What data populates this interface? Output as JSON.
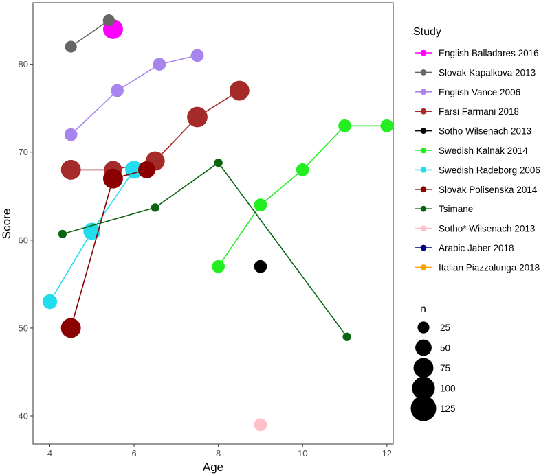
{
  "chart_data": {
    "type": "scatter",
    "title": "",
    "xlabel": "Age",
    "ylabel": "Score",
    "xlim": [
      3.6,
      12.15
    ],
    "ylim": [
      36.8,
      87.0
    ],
    "xticks": [
      4,
      6,
      8,
      10,
      12
    ],
    "yticks": [
      40,
      50,
      60,
      70,
      80
    ],
    "grid": false,
    "legend_position": "right",
    "color_legend_title": "Study",
    "size_legend_title": "n",
    "size_legend": [
      25,
      50,
      75,
      100,
      125
    ],
    "series": [
      {
        "name": "English Balladares 2016",
        "color": "#ff00ff",
        "points": [
          {
            "x": 5.5,
            "y": 84,
            "n": 75
          }
        ]
      },
      {
        "name": "Slovak  Kapalkova 2013",
        "color": "#666666",
        "points": [
          {
            "x": 4.5,
            "y": 82,
            "n": 25
          },
          {
            "x": 5.4,
            "y": 85,
            "n": 25
          }
        ]
      },
      {
        "name": "English Vance 2006",
        "color": "#a884ee",
        "points": [
          {
            "x": 4.5,
            "y": 72,
            "n": 30
          },
          {
            "x": 5.6,
            "y": 77,
            "n": 30
          },
          {
            "x": 6.6,
            "y": 80,
            "n": 30
          },
          {
            "x": 7.5,
            "y": 81,
            "n": 30
          }
        ]
      },
      {
        "name": "Farsi Farmani 2018",
        "color": "#a52a2a",
        "points": [
          {
            "x": 4.5,
            "y": 68,
            "n": 75
          },
          {
            "x": 5.5,
            "y": 68,
            "n": 60
          },
          {
            "x": 6.5,
            "y": 69,
            "n": 70
          },
          {
            "x": 7.5,
            "y": 74,
            "n": 80
          },
          {
            "x": 8.5,
            "y": 77,
            "n": 75
          }
        ]
      },
      {
        "name": "Sotho Wilsenach 2013",
        "color": "#000000",
        "points": [
          {
            "x": 9,
            "y": 57,
            "n": 30
          }
        ]
      },
      {
        "name": "Swedish Kalnak 2014",
        "color": "#22ee22",
        "points": [
          {
            "x": 8,
            "y": 57,
            "n": 30
          },
          {
            "x": 9,
            "y": 64,
            "n": 30
          },
          {
            "x": 10,
            "y": 68,
            "n": 30
          },
          {
            "x": 11,
            "y": 73,
            "n": 30
          },
          {
            "x": 12,
            "y": 73,
            "n": 30
          }
        ]
      },
      {
        "name": "Swedish Radeborg 2006",
        "color": "#22ddee",
        "points": [
          {
            "x": 4,
            "y": 53,
            "n": 40
          },
          {
            "x": 5,
            "y": 61,
            "n": 55
          },
          {
            "x": 6,
            "y": 68,
            "n": 60
          }
        ]
      },
      {
        "name": "Slovak  Polisenska 2014",
        "color": "#8b0000",
        "points": [
          {
            "x": 4.5,
            "y": 50,
            "n": 75
          },
          {
            "x": 5.5,
            "y": 67,
            "n": 75
          },
          {
            "x": 6.3,
            "y": 68,
            "n": 55
          }
        ]
      },
      {
        "name": "Tsimane'",
        "color": "#0a6410",
        "points": [
          {
            "x": 4.3,
            "y": 60.7,
            "n": 12
          },
          {
            "x": 6.5,
            "y": 63.7,
            "n": 12
          },
          {
            "x": 8,
            "y": 68.8,
            "n": 12
          },
          {
            "x": 11.05,
            "y": 49,
            "n": 12
          }
        ]
      },
      {
        "name": "Sotho* Wilsenach 2013",
        "color": "#ffc0cb",
        "points": [
          {
            "x": 9,
            "y": 39,
            "n": 30
          }
        ]
      },
      {
        "name": "Arabic Jaber 2018",
        "color": "#000080",
        "points": []
      },
      {
        "name": "Italian Piazzalunga 2018",
        "color": "#ffa500",
        "points": []
      }
    ]
  }
}
